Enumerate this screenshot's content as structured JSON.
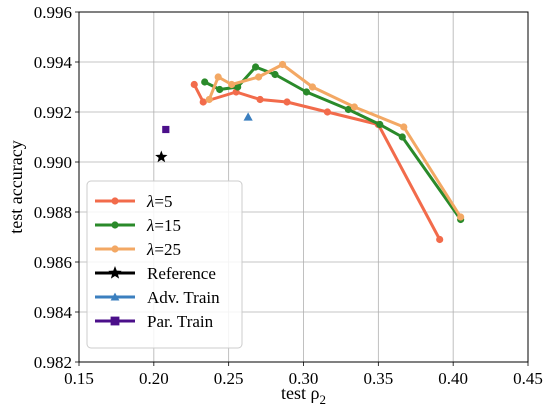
{
  "chart_data": {
    "type": "line",
    "title": "",
    "xlabel": "test ρ",
    "xlabel_sub": "2",
    "ylabel": "test accuracy",
    "xlim": [
      0.15,
      0.45
    ],
    "ylim": [
      0.982,
      0.996
    ],
    "xticks": [
      0.15,
      0.2,
      0.25,
      0.3,
      0.35,
      0.4,
      0.45
    ],
    "xtick_labels": [
      "0.15",
      "0.20",
      "0.25",
      "0.30",
      "0.35",
      "0.40",
      "0.45"
    ],
    "yticks": [
      0.982,
      0.984,
      0.986,
      0.988,
      0.99,
      0.992,
      0.994,
      0.996
    ],
    "ytick_labels": [
      "0.982",
      "0.984",
      "0.986",
      "0.988",
      "0.990",
      "0.992",
      "0.994",
      "0.996"
    ],
    "grid": true,
    "legend_position": "lower-left",
    "series": [
      {
        "name": "λ=5",
        "greek": "λ",
        "suffix": "=5",
        "color": "#f26b4b",
        "marker": "circle",
        "points": [
          [
            0.227,
            0.9931
          ],
          [
            0.233,
            0.9924
          ],
          [
            0.255,
            0.9928
          ],
          [
            0.271,
            0.9925
          ],
          [
            0.289,
            0.9924
          ],
          [
            0.316,
            0.992
          ],
          [
            0.35,
            0.9915
          ],
          [
            0.391,
            0.9869
          ]
        ]
      },
      {
        "name": "λ=15",
        "greek": "λ",
        "suffix": "=15",
        "color": "#2a8a2a",
        "marker": "circle",
        "points": [
          [
            0.234,
            0.9932
          ],
          [
            0.244,
            0.9929
          ],
          [
            0.256,
            0.993
          ],
          [
            0.268,
            0.9938
          ],
          [
            0.281,
            0.9935
          ],
          [
            0.302,
            0.9928
          ],
          [
            0.33,
            0.9921
          ],
          [
            0.351,
            0.9915
          ],
          [
            0.366,
            0.991
          ],
          [
            0.405,
            0.9877
          ]
        ]
      },
      {
        "name": "λ=25",
        "greek": "λ",
        "suffix": "=25",
        "color": "#f3a864",
        "marker": "circle",
        "points": [
          [
            0.237,
            0.9925
          ],
          [
            0.243,
            0.9934
          ],
          [
            0.252,
            0.9931
          ],
          [
            0.27,
            0.9934
          ],
          [
            0.286,
            0.9939
          ],
          [
            0.306,
            0.993
          ],
          [
            0.334,
            0.9922
          ],
          [
            0.367,
            0.9914
          ],
          [
            0.405,
            0.9878
          ]
        ]
      },
      {
        "name": "Reference",
        "color": "#000000",
        "marker": "star",
        "points": [
          [
            0.205,
            0.9902
          ]
        ]
      },
      {
        "name": "Adv. Train",
        "color": "#3b7fbf",
        "marker": "triangle",
        "points": [
          [
            0.263,
            0.9918
          ]
        ]
      },
      {
        "name": "Par. Train",
        "color": "#4b0f8a",
        "marker": "square",
        "points": [
          [
            0.208,
            0.9913
          ]
        ]
      }
    ]
  }
}
